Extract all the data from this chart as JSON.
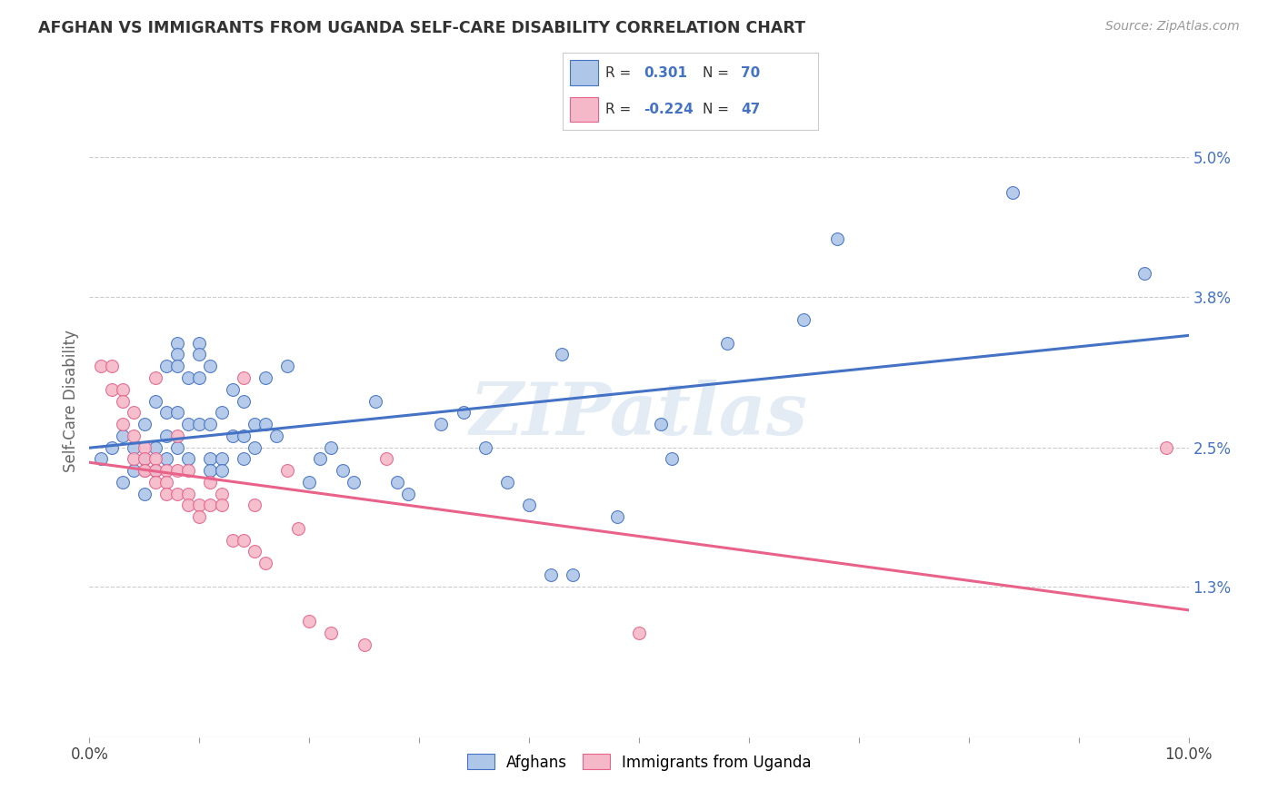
{
  "title": "AFGHAN VS IMMIGRANTS FROM UGANDA SELF-CARE DISABILITY CORRELATION CHART",
  "source": "Source: ZipAtlas.com",
  "ylabel": "Self-Care Disability",
  "xlim": [
    0.0,
    0.1
  ],
  "ylim": [
    0.0,
    0.058
  ],
  "ytick_labels_right": [
    "1.3%",
    "2.5%",
    "3.8%",
    "5.0%"
  ],
  "ytick_vals_right": [
    0.013,
    0.025,
    0.038,
    0.05
  ],
  "afghan_color": "#aec6e8",
  "uganda_color": "#f4b8c8",
  "afghan_line_color": "#4472c4",
  "uganda_line_color": "#e8628a",
  "watermark": "ZIPatlas",
  "background_color": "#ffffff",
  "grid_color": "#cccccc",
  "afghan_points": [
    [
      0.001,
      0.024
    ],
    [
      0.002,
      0.025
    ],
    [
      0.003,
      0.022
    ],
    [
      0.003,
      0.026
    ],
    [
      0.004,
      0.025
    ],
    [
      0.004,
      0.023
    ],
    [
      0.005,
      0.027
    ],
    [
      0.005,
      0.024
    ],
    [
      0.005,
      0.021
    ],
    [
      0.006,
      0.029
    ],
    [
      0.006,
      0.025
    ],
    [
      0.006,
      0.023
    ],
    [
      0.007,
      0.032
    ],
    [
      0.007,
      0.026
    ],
    [
      0.007,
      0.024
    ],
    [
      0.007,
      0.028
    ],
    [
      0.008,
      0.034
    ],
    [
      0.008,
      0.033
    ],
    [
      0.008,
      0.032
    ],
    [
      0.008,
      0.028
    ],
    [
      0.008,
      0.025
    ],
    [
      0.009,
      0.031
    ],
    [
      0.009,
      0.027
    ],
    [
      0.009,
      0.024
    ],
    [
      0.01,
      0.034
    ],
    [
      0.01,
      0.033
    ],
    [
      0.01,
      0.031
    ],
    [
      0.01,
      0.027
    ],
    [
      0.011,
      0.032
    ],
    [
      0.011,
      0.027
    ],
    [
      0.011,
      0.024
    ],
    [
      0.011,
      0.023
    ],
    [
      0.012,
      0.028
    ],
    [
      0.012,
      0.024
    ],
    [
      0.012,
      0.023
    ],
    [
      0.013,
      0.03
    ],
    [
      0.013,
      0.026
    ],
    [
      0.014,
      0.029
    ],
    [
      0.014,
      0.026
    ],
    [
      0.014,
      0.024
    ],
    [
      0.015,
      0.027
    ],
    [
      0.015,
      0.025
    ],
    [
      0.016,
      0.031
    ],
    [
      0.016,
      0.027
    ],
    [
      0.017,
      0.026
    ],
    [
      0.018,
      0.032
    ],
    [
      0.02,
      0.022
    ],
    [
      0.021,
      0.024
    ],
    [
      0.022,
      0.025
    ],
    [
      0.023,
      0.023
    ],
    [
      0.024,
      0.022
    ],
    [
      0.026,
      0.029
    ],
    [
      0.028,
      0.022
    ],
    [
      0.029,
      0.021
    ],
    [
      0.032,
      0.027
    ],
    [
      0.034,
      0.028
    ],
    [
      0.036,
      0.025
    ],
    [
      0.038,
      0.022
    ],
    [
      0.04,
      0.02
    ],
    [
      0.042,
      0.014
    ],
    [
      0.043,
      0.033
    ],
    [
      0.044,
      0.014
    ],
    [
      0.048,
      0.019
    ],
    [
      0.052,
      0.027
    ],
    [
      0.053,
      0.024
    ],
    [
      0.058,
      0.034
    ],
    [
      0.065,
      0.036
    ],
    [
      0.068,
      0.043
    ],
    [
      0.084,
      0.047
    ],
    [
      0.096,
      0.04
    ]
  ],
  "uganda_points": [
    [
      0.001,
      0.032
    ],
    [
      0.002,
      0.032
    ],
    [
      0.002,
      0.03
    ],
    [
      0.003,
      0.03
    ],
    [
      0.003,
      0.029
    ],
    [
      0.003,
      0.027
    ],
    [
      0.004,
      0.028
    ],
    [
      0.004,
      0.026
    ],
    [
      0.004,
      0.024
    ],
    [
      0.005,
      0.025
    ],
    [
      0.005,
      0.024
    ],
    [
      0.005,
      0.023
    ],
    [
      0.005,
      0.023
    ],
    [
      0.006,
      0.031
    ],
    [
      0.006,
      0.024
    ],
    [
      0.006,
      0.023
    ],
    [
      0.006,
      0.022
    ],
    [
      0.007,
      0.023
    ],
    [
      0.007,
      0.022
    ],
    [
      0.007,
      0.021
    ],
    [
      0.008,
      0.026
    ],
    [
      0.008,
      0.023
    ],
    [
      0.008,
      0.021
    ],
    [
      0.009,
      0.023
    ],
    [
      0.009,
      0.021
    ],
    [
      0.009,
      0.02
    ],
    [
      0.01,
      0.02
    ],
    [
      0.01,
      0.019
    ],
    [
      0.011,
      0.022
    ],
    [
      0.011,
      0.02
    ],
    [
      0.012,
      0.021
    ],
    [
      0.012,
      0.02
    ],
    [
      0.013,
      0.017
    ],
    [
      0.014,
      0.031
    ],
    [
      0.014,
      0.017
    ],
    [
      0.015,
      0.02
    ],
    [
      0.015,
      0.016
    ],
    [
      0.016,
      0.015
    ],
    [
      0.018,
      0.023
    ],
    [
      0.019,
      0.018
    ],
    [
      0.02,
      0.01
    ],
    [
      0.022,
      0.009
    ],
    [
      0.025,
      0.008
    ],
    [
      0.027,
      0.024
    ],
    [
      0.05,
      0.009
    ],
    [
      0.098,
      0.025
    ]
  ]
}
